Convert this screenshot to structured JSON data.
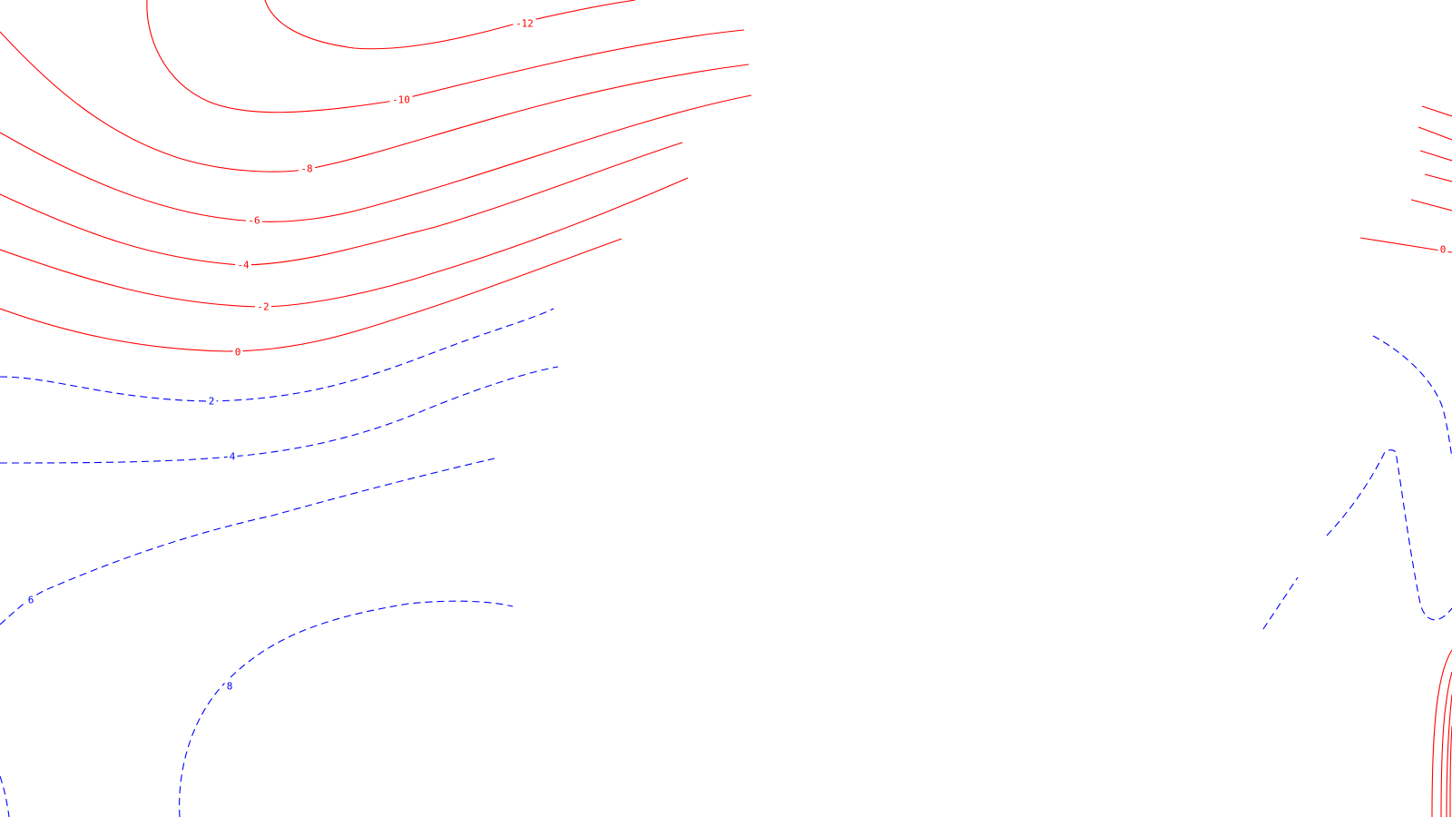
{
  "map": {
    "style": {
      "negative_color": "#ff0000",
      "positive_color": "#0000ff",
      "negative_line": "solid",
      "positive_line": "dashed",
      "background": "#ffffff"
    },
    "contour_labels": [
      "-12",
      "-10",
      "-8",
      "-6",
      "-4",
      "-2",
      "0",
      "2",
      "4",
      "6",
      "8",
      "0"
    ]
  }
}
